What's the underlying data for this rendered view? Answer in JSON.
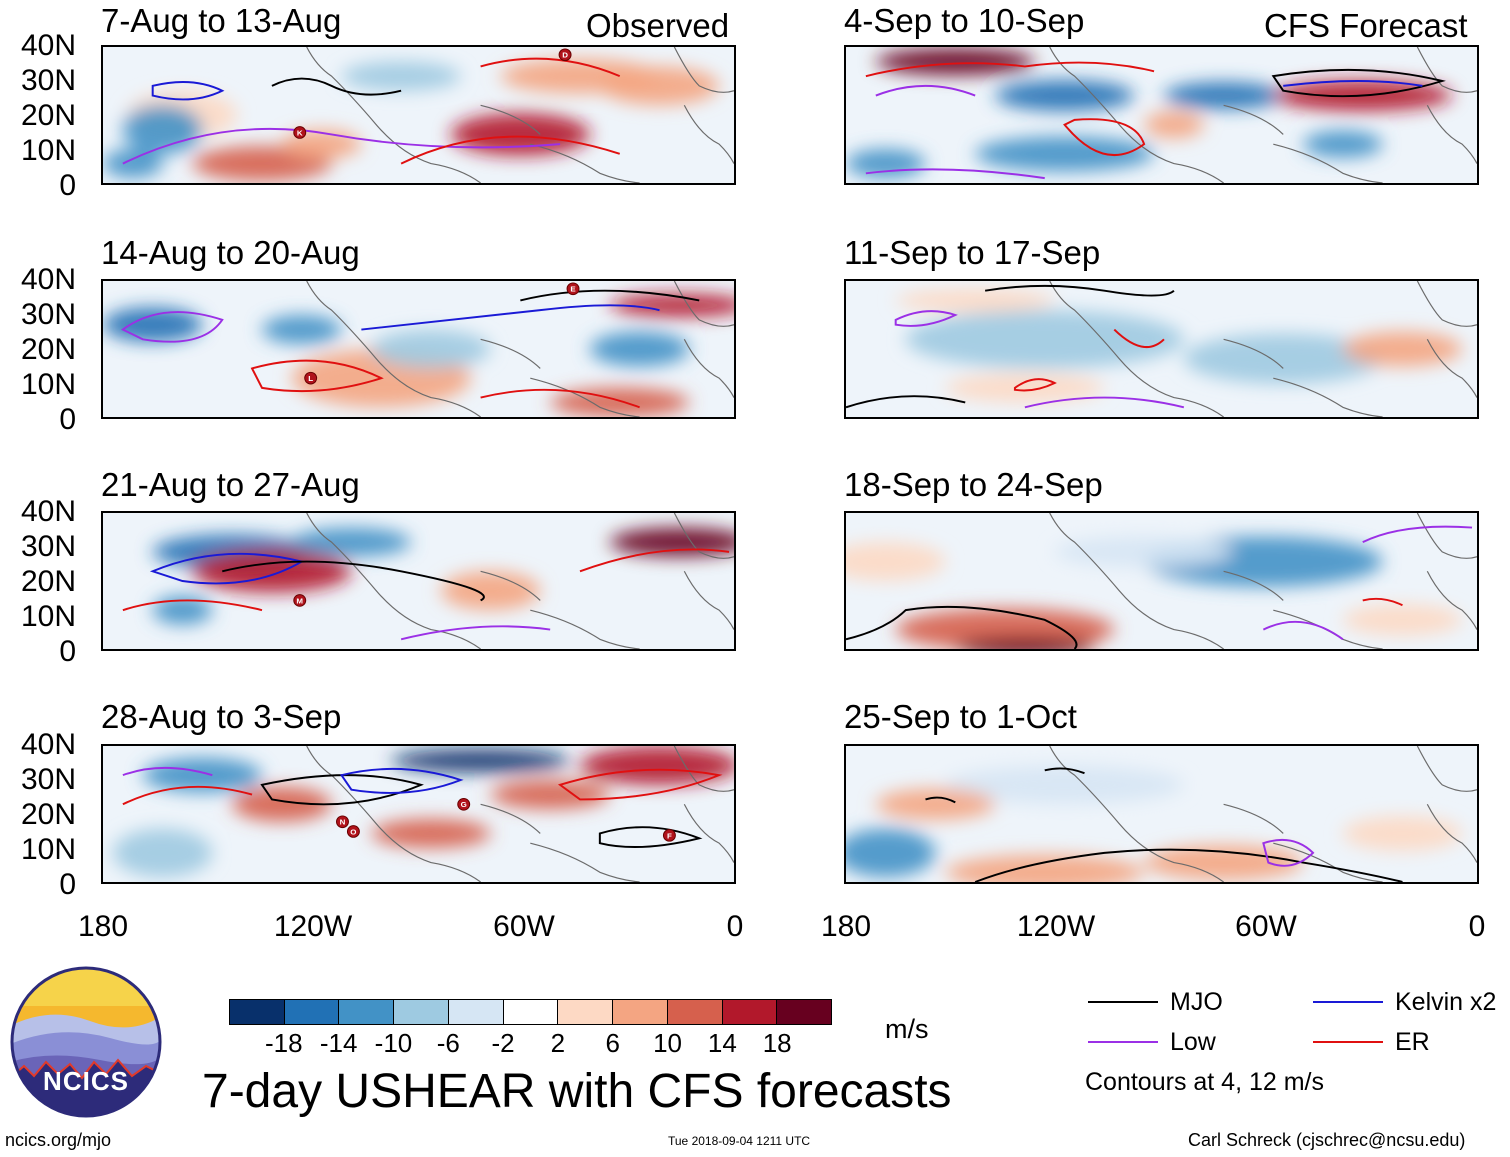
{
  "header": {
    "observed_label": "Observed",
    "forecast_label": "CFS Forecast"
  },
  "panels": {
    "left": [
      "7-Aug to 13-Aug",
      "14-Aug to 20-Aug",
      "21-Aug to 27-Aug",
      "28-Aug to 3-Sep"
    ],
    "right": [
      "4-Sep to 10-Sep",
      "11-Sep to 17-Sep",
      "18-Sep to 24-Sep",
      "25-Sep to 1-Oct"
    ]
  },
  "axes": {
    "lat_labels": [
      "40N",
      "30N",
      "20N",
      "10N",
      "0"
    ],
    "lon_labels": [
      "180",
      "120W",
      "60W",
      "0"
    ]
  },
  "storm_labels": {
    "p1": [
      "D",
      "K"
    ],
    "p2": [
      "E",
      "L"
    ],
    "p3": [
      "M"
    ],
    "p4": [
      "G",
      "N",
      "O",
      "F"
    ]
  },
  "colorbar": {
    "colors": [
      "#08306b",
      "#2171b5",
      "#4292c6",
      "#9ecae1",
      "#d6e6f4",
      "#ffffff",
      "#fdd9c4",
      "#f4a582",
      "#d6604d",
      "#b2182b",
      "#67001f"
    ],
    "ticks": [
      "-18",
      "-14",
      "-10",
      "-6",
      "-2",
      "2",
      "6",
      "10",
      "14",
      "18"
    ],
    "units": "m/s"
  },
  "title": "7-day USHEAR with CFS forecasts",
  "legend": {
    "items": [
      {
        "label": "MJO",
        "color": "#000000"
      },
      {
        "label": "Kelvin x2",
        "color": "#1a1ad6"
      },
      {
        "label": "Low",
        "color": "#9b30e6"
      },
      {
        "label": "ER",
        "color": "#e01010"
      }
    ],
    "note": "Contours at 4, 12 m/s"
  },
  "logo": {
    "text": "NCICS"
  },
  "footer": {
    "url": "ncics.org/mjo",
    "timestamp": "Tue 2018-09-04 1211 UTC",
    "credit": "Carl Schreck (cjschrec@ncsu.edu)"
  }
}
